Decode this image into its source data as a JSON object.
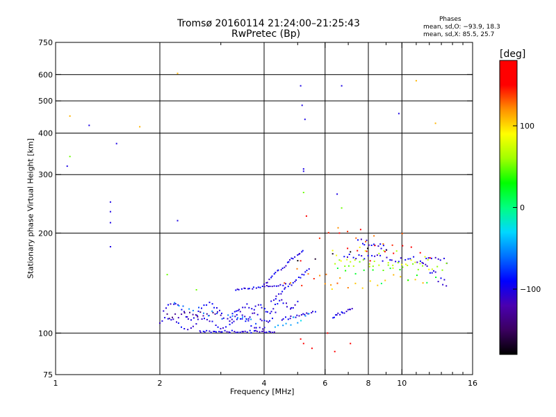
{
  "chart_data": {
    "type": "scatter",
    "title": "Tromsø 20160114 21:24:00–21:25:43",
    "subtitle": "RwPretec (Bp)",
    "xlabel": "Frequency [MHz]",
    "ylabel": "Stationary phase Virtual Height [km]",
    "x_scale": "log",
    "y_scale": "log",
    "xlim": [
      1,
      16
    ],
    "ylim": [
      75,
      750
    ],
    "x_ticks": [
      1,
      2,
      4,
      6,
      8,
      10,
      16
    ],
    "x_minor_ticks": [
      3,
      5,
      7,
      9,
      11,
      12,
      13,
      14,
      15
    ],
    "y_ticks": [
      75,
      100,
      200,
      300,
      400,
      500,
      600,
      750
    ],
    "grid_x": [
      2,
      4,
      6,
      8,
      10
    ],
    "grid_y": [
      100,
      200,
      300,
      400,
      500,
      600
    ],
    "phases": {
      "heading": "Phases",
      "line_o": "mean, sd,O: −93.9, 18.3",
      "line_x": "mean, sd,X: 85.5, 25.7"
    },
    "colorbar": {
      "label": "[deg]",
      "range": [
        -180,
        180
      ],
      "ticks": [
        {
          "value": 100,
          "label": "100"
        },
        {
          "value": 0,
          "label": "0"
        },
        {
          "value": -100,
          "label": "−100"
        }
      ],
      "colors": [
        "#000000",
        "#3b0060",
        "#4a00b0",
        "#0000ff",
        "#0070ff",
        "#00d8ff",
        "#00ff80",
        "#00ff00",
        "#a0ff00",
        "#ffff00",
        "#ff9000",
        "#ff0000",
        "#ff0000"
      ]
    },
    "series": [
      {
        "phase": -100,
        "points": [
          [
            1.08,
            318
          ],
          [
            1.25,
            422
          ],
          [
            1.44,
            248
          ],
          [
            1.44,
            232
          ],
          [
            1.44,
            215
          ],
          [
            1.44,
            182
          ],
          [
            1.5,
            372
          ],
          [
            2.25,
            218
          ],
          [
            5.1,
            555
          ],
          [
            5.15,
            485
          ],
          [
            5.25,
            440
          ],
          [
            5.2,
            312
          ],
          [
            5.2,
            307
          ],
          [
            6.7,
            555
          ],
          [
            9.8,
            458
          ],
          [
            6.5,
            262
          ]
        ]
      },
      {
        "phase": 110,
        "points": [
          [
            1.1,
            450
          ],
          [
            1.75,
            418
          ],
          [
            2.25,
            605
          ],
          [
            12.5,
            428
          ],
          [
            11.0,
            575
          ]
        ]
      },
      {
        "phase": 50,
        "points": [
          [
            1.1,
            340
          ],
          [
            5.2,
            265
          ],
          [
            6.7,
            238
          ],
          [
            2.55,
            135
          ],
          [
            2.1,
            150
          ]
        ]
      },
      {
        "phase": 160,
        "points": [
          [
            5.5,
            90
          ],
          [
            6.4,
            88
          ],
          [
            6.1,
            100
          ],
          [
            5.1,
            96
          ],
          [
            5.2,
            93
          ],
          [
            7.1,
            93
          ],
          [
            5.3,
            225
          ],
          [
            5.1,
            165
          ],
          [
            6.6,
            200
          ],
          [
            8.1,
            165
          ],
          [
            7.6,
            205
          ]
        ]
      }
    ],
    "traces": [
      {
        "phase": -100,
        "f0": 2.0,
        "f1": 4.1,
        "h0": 107,
        "h1": 107,
        "bump": 4,
        "n": 40,
        "jitter": 0.012
      },
      {
        "phase": -100,
        "f0": 2.05,
        "f1": 4.3,
        "h0": 118,
        "h1": 114,
        "bump": 6,
        "n": 45,
        "jitter": 0.014
      },
      {
        "phase": -100,
        "f0": 2.6,
        "f1": 4.3,
        "h0": 101,
        "h1": 101,
        "bump": 0,
        "n": 40,
        "jitter": 0.008
      },
      {
        "phase": -100,
        "f0": 3.2,
        "f1": 5.0,
        "h0": 112,
        "h1": 124,
        "bump": 4,
        "n": 35,
        "jitter": 0.01
      },
      {
        "phase": -100,
        "f0": 3.3,
        "f1": 4.6,
        "h0": 135,
        "h1": 140,
        "bump": 0,
        "n": 25,
        "jitter": 0.006
      },
      {
        "phase": -100,
        "f0": 4.0,
        "f1": 5.2,
        "h0": 140,
        "h1": 178,
        "bump": 0,
        "n": 25,
        "jitter": 0.01
      },
      {
        "phase": -100,
        "f0": 4.2,
        "f1": 5.4,
        "h0": 125,
        "h1": 155,
        "bump": 0,
        "n": 22,
        "jitter": 0.01
      },
      {
        "phase": -100,
        "f0": 4.5,
        "f1": 5.6,
        "h0": 110,
        "h1": 116,
        "bump": 0,
        "n": 18,
        "jitter": 0.01
      },
      {
        "phase": -100,
        "f0": 6.3,
        "f1": 7.2,
        "h0": 112,
        "h1": 118,
        "bump": 0,
        "n": 14,
        "jitter": 0.01
      },
      {
        "phase": -100,
        "f0": 6.8,
        "f1": 13.5,
        "h0": 170,
        "h1": 165,
        "bump": 0,
        "n": 35,
        "jitter": 0.02
      },
      {
        "phase": -100,
        "f0": 7.5,
        "f1": 9.0,
        "h0": 190,
        "h1": 180,
        "bump": 0,
        "n": 14,
        "jitter": 0.02
      },
      {
        "phase": -100,
        "f0": 11.5,
        "f1": 13.5,
        "h0": 160,
        "h1": 140,
        "bump": 0,
        "n": 12,
        "jitter": 0.03
      },
      {
        "phase": -130,
        "f0": 2.1,
        "f1": 3.0,
        "h0": 112,
        "h1": 115,
        "bump": 0,
        "n": 20,
        "jitter": 0.02
      },
      {
        "phase": -60,
        "f0": 2.2,
        "f1": 3.8,
        "h0": 120,
        "h1": 108,
        "bump": 0,
        "n": 18,
        "jitter": 0.03
      },
      {
        "phase": -40,
        "f0": 4.3,
        "f1": 5.4,
        "h0": 102,
        "h1": 115,
        "bump": 0,
        "n": 10,
        "jitter": 0.03
      },
      {
        "phase": 80,
        "f0": 6.3,
        "f1": 12.0,
        "h0": 175,
        "h1": 165,
        "bump": 0,
        "n": 22,
        "jitter": 0.06
      },
      {
        "phase": 60,
        "f0": 6.4,
        "f1": 13.5,
        "h0": 160,
        "h1": 160,
        "bump": 0,
        "n": 24,
        "jitter": 0.04
      },
      {
        "phase": 110,
        "f0": 6.0,
        "f1": 11.5,
        "h0": 140,
        "h1": 145,
        "bump": 0,
        "n": 14,
        "jitter": 0.05
      },
      {
        "phase": 130,
        "f0": 5.8,
        "f1": 10.0,
        "h0": 200,
        "h1": 190,
        "bump": 0,
        "n": 10,
        "jitter": 0.05
      },
      {
        "phase": 165,
        "f0": 7.0,
        "f1": 12.0,
        "h0": 185,
        "h1": 175,
        "bump": 0,
        "n": 10,
        "jitter": 0.04
      },
      {
        "phase": -170,
        "f0": 5.0,
        "f1": 9.0,
        "h0": 170,
        "h1": 180,
        "bump": 0,
        "n": 6,
        "jitter": 0.04
      },
      {
        "phase": 130,
        "f0": 4.6,
        "f1": 6.5,
        "h0": 150,
        "h1": 140,
        "bump": 0,
        "n": 10,
        "jitter": 0.06
      },
      {
        "phase": 20,
        "f0": 6.5,
        "f1": 12.5,
        "h0": 150,
        "h1": 150,
        "bump": 0,
        "n": 12,
        "jitter": 0.06
      }
    ]
  }
}
